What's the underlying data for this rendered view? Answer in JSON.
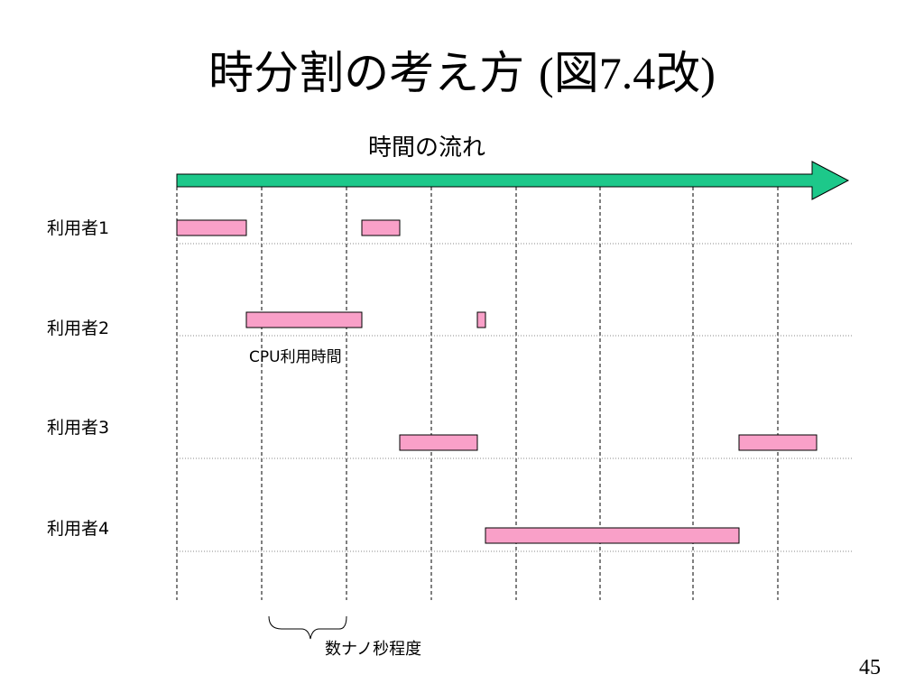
{
  "title": {
    "main": "時分割の考え方",
    "figure_ref": "(図7.4改)"
  },
  "timeline": {
    "label": "時間の流れ"
  },
  "users": [
    {
      "label": "利用者1",
      "slots": [
        [
          0,
          1
        ],
        [
          3,
          4
        ]
      ]
    },
    {
      "label": "利用者2",
      "slots": [
        [
          1,
          3
        ],
        [
          5,
          6
        ]
      ]
    },
    {
      "label": "利用者3",
      "slots": [
        [
          4,
          5
        ],
        [
          9,
          10
        ]
      ]
    },
    {
      "label": "利用者4",
      "slots": [
        [
          6,
          9
        ]
      ]
    }
  ],
  "annotations": {
    "cpu_time": "CPU利用時間",
    "interval": "数ナノ秒程度"
  },
  "page_number": "45",
  "colors": {
    "arrow": "#1dc88a",
    "bar_fill": "#f9a0c8",
    "bar_stroke": "#000000"
  }
}
